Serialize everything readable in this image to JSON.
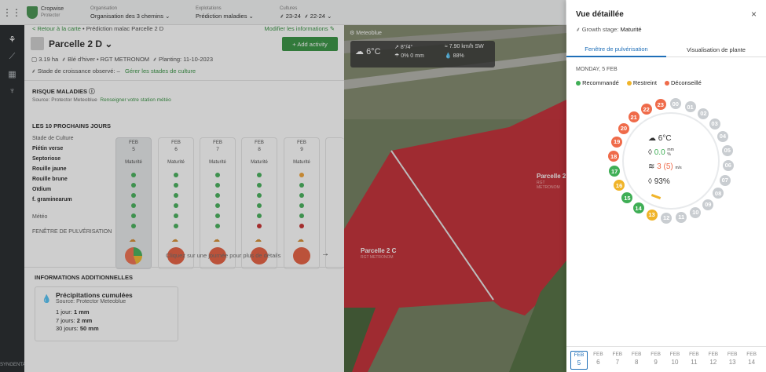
{
  "topbar": {
    "brand": "Cropwise",
    "brand_sub": "Protector",
    "org_label": "Organisation",
    "org_value": "Organisation des 3 chemins",
    "expl_label": "Explotations",
    "expl_value": "Prédiction maladies",
    "cult_label": "Cultures",
    "cult_a": "23-24",
    "cult_b": "22-24"
  },
  "sidebar": {
    "bottom_label": "SYNGENTA"
  },
  "main": {
    "back": "< Retour à la carte",
    "crumb1": "• Prédiction malac",
    "crumb2": "Parcelle 2 D",
    "modify": "Modifier les informations ✎",
    "title": "Parcelle 2 D",
    "add_activity": "+ Add activity",
    "info_area": "3.19 ha",
    "info_crop": "Blé d'hiver • RGT METRONOM",
    "info_planting": "Planting: 11-10-2023",
    "stage_observed": "Stade de croissance observé: –",
    "manage_stages": "Gérer les stades de culture",
    "risk_title": "RISQUE MALADIES",
    "risk_source": "Source: Protector Meteoblue",
    "risk_link": "Renseigner votre station météo",
    "next_days": "LES 10 PROCHAINS JOURS",
    "stage_label": "Stade de Culture",
    "diseases": [
      "Piétin verse",
      "Septoriose",
      "Rouille jaune",
      "Rouille brune",
      "Oïdium",
      "f. graminearum"
    ],
    "meteo_label": "Météo",
    "spray_label": "FENÊTRE DE PULVÉRISATION",
    "days": [
      {
        "month": "FEB",
        "day": "5",
        "stage": "Maturité",
        "dots": [
          "#3fae55",
          "#3fae55",
          "#3fae55",
          "#3fae55",
          "#3fae55",
          "#3fae55"
        ]
      },
      {
        "month": "FEB",
        "day": "6",
        "stage": "Maturité",
        "dots": [
          "#3fae55",
          "#3fae55",
          "#3fae55",
          "#3fae55",
          "#3fae55",
          "#3fae55"
        ]
      },
      {
        "month": "FEB",
        "day": "7",
        "stage": "Maturité",
        "dots": [
          "#3fae55",
          "#3fae55",
          "#3fae55",
          "#3fae55",
          "#3fae55",
          "#3fae55"
        ]
      },
      {
        "month": "FEB",
        "day": "8",
        "stage": "Maturité",
        "dots": [
          "#3fae55",
          "#3fae55",
          "#3fae55",
          "#3fae55",
          "#3fae55",
          "#c62828"
        ]
      },
      {
        "month": "FEB",
        "day": "9",
        "stage": "Maturité",
        "dots": [
          "#f0a030",
          "#3fae55",
          "#3fae55",
          "#3fae55",
          "#3fae55",
          "#c62828"
        ]
      }
    ],
    "click_hint": "Cliquez sur une journée pour plus de détails",
    "additional": "INFORMATIONS ADDITIONNELLES",
    "precip_title": "Précipitations cumulées",
    "precip_source": "Source: Protector Meteoblue",
    "precip_rows": [
      {
        "label": "1 jour:",
        "value": "1 mm"
      },
      {
        "label": "7 jours:",
        "value": "2 mm"
      },
      {
        "label": "30 jours:",
        "value": "50 mm"
      }
    ]
  },
  "map": {
    "provider": "Meteoblue",
    "temp": "6°C",
    "wind_angle": "8°/4°",
    "rain": "0% 0 mm",
    "wind": "7.90 km/h SW",
    "humidity": "88%",
    "parcel_2d": "Parcelle 2",
    "parcel_2c": "Parcelle 2 C",
    "parcel_2c_sub": "RGT METRONOM",
    "parcel_2d_sub": "RGT METRONOM"
  },
  "panel": {
    "title": "Vue détaillée",
    "close": "×",
    "growth_label": "Growth stage:",
    "growth_value": "Maturité",
    "tab_spray": "Fenêtre de pulvérisation",
    "tab_plant": "Visualisation de plante",
    "date": "MONDAY, 5 FEB",
    "legend": [
      {
        "label": "Recommandé",
        "color": "#3fae55"
      },
      {
        "label": "Restreint",
        "color": "#f0b429"
      },
      {
        "label": "Déconseillé",
        "color": "#ef6b4a"
      }
    ],
    "center_temp": "6°C",
    "center_rain": "0.0",
    "center_rain_unit": "mm",
    "center_rain_unit2": "%",
    "center_wind": "3 (5)",
    "center_wind_unit": "m/s",
    "center_humidity": "93%",
    "hours": [
      "00",
      "01",
      "02",
      "03",
      "04",
      "05",
      "06",
      "07",
      "08",
      "09",
      "10",
      "11",
      "12",
      "13",
      "14",
      "15",
      "16",
      "17",
      "18",
      "19",
      "20",
      "21",
      "22",
      "23"
    ],
    "hour_colors": [
      "#c9cdd1",
      "#c9cdd1",
      "#c9cdd1",
      "#c9cdd1",
      "#c9cdd1",
      "#c9cdd1",
      "#c9cdd1",
      "#c9cdd1",
      "#c9cdd1",
      "#c9cdd1",
      "#c9cdd1",
      "#c9cdd1",
      "#c9cdd1",
      "#f0b429",
      "#3fae55",
      "#3fae55",
      "#f0b429",
      "#3fae55",
      "#ef6b4a",
      "#ef6b4a",
      "#ef6b4a",
      "#ef6b4a",
      "#ef6b4a",
      "#ef6b4a"
    ],
    "bottom_days": [
      {
        "m": "FEB",
        "d": "5"
      },
      {
        "m": "FEB",
        "d": "6"
      },
      {
        "m": "FEB",
        "d": "7"
      },
      {
        "m": "FEB",
        "d": "8"
      },
      {
        "m": "FEB",
        "d": "9"
      },
      {
        "m": "FEB",
        "d": "10"
      },
      {
        "m": "FEB",
        "d": "11"
      },
      {
        "m": "FEB",
        "d": "12"
      },
      {
        "m": "FEB",
        "d": "13"
      },
      {
        "m": "FEB",
        "d": "14"
      }
    ]
  }
}
